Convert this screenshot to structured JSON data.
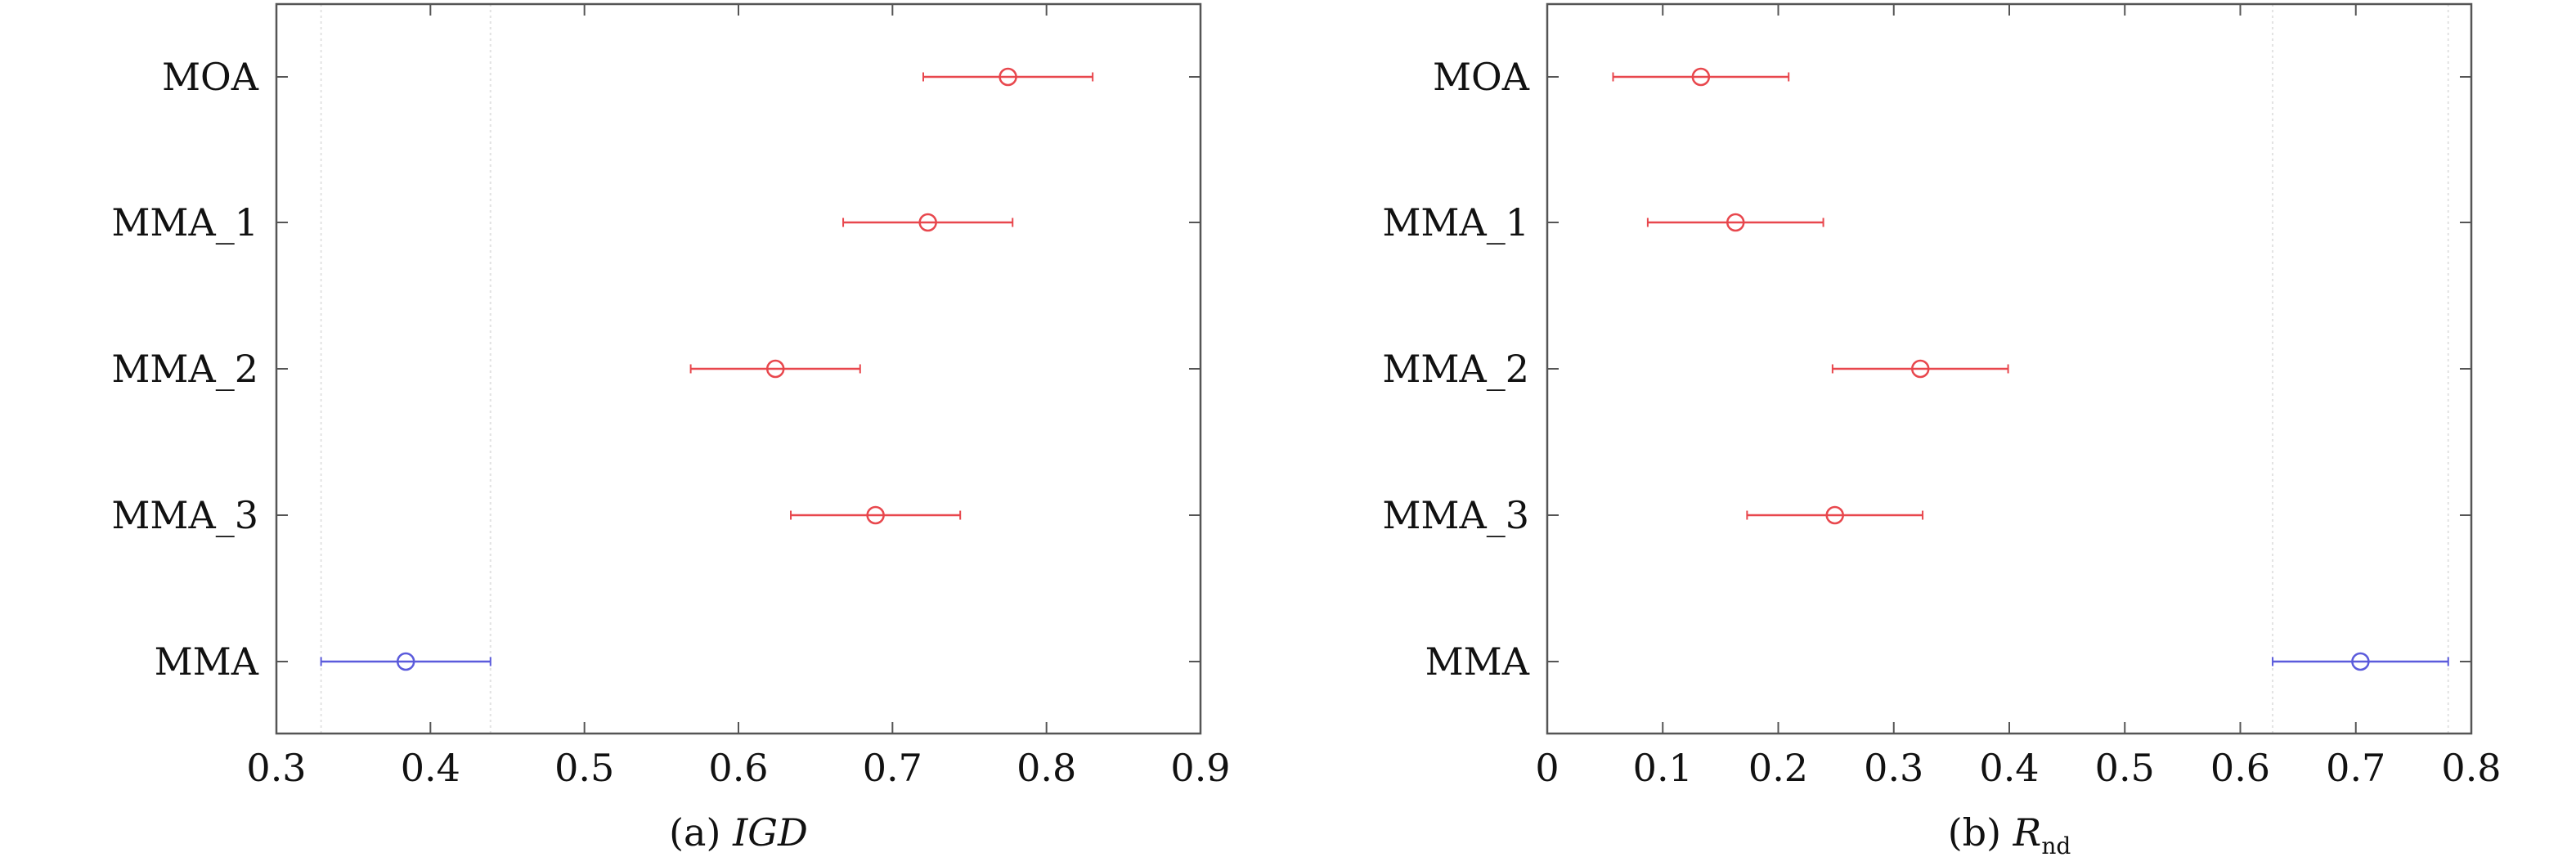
{
  "colors": {
    "treatment": "#e8474d",
    "control": "#5b5bdc",
    "axis": "#555555",
    "band": "#e2e2e2"
  },
  "chart_data": [
    {
      "type": "scatter",
      "subtype": "interval-plot",
      "caption_prefix": "(a) ",
      "caption_main": "IGD",
      "caption_sub": "",
      "caption_style": "italic",
      "categories": [
        "MOA",
        "MMA_1",
        "MMA_2",
        "MMA_3",
        "MMA"
      ],
      "series": [
        {
          "points": [
            {
              "category": "MOA",
              "value": 0.775,
              "lower": 0.72,
              "upper": 0.83,
              "group": "treatment"
            },
            {
              "category": "MMA_1",
              "value": 0.723,
              "lower": 0.668,
              "upper": 0.778,
              "group": "treatment"
            },
            {
              "category": "MMA_2",
              "value": 0.624,
              "lower": 0.569,
              "upper": 0.679,
              "group": "treatment"
            },
            {
              "category": "MMA_3",
              "value": 0.689,
              "lower": 0.634,
              "upper": 0.744,
              "group": "treatment"
            },
            {
              "category": "MMA",
              "value": 0.384,
              "lower": 0.329,
              "upper": 0.439,
              "group": "control"
            }
          ]
        }
      ],
      "xlim": [
        0.3,
        0.9
      ],
      "xticks": [
        0.3,
        0.4,
        0.5,
        0.6,
        0.7,
        0.8,
        0.9
      ],
      "xtick_labels": [
        "0.3",
        "0.4",
        "0.5",
        "0.6",
        "0.7",
        "0.8",
        "0.9"
      ],
      "reference_band": [
        0.329,
        0.439
      ],
      "grid": false
    },
    {
      "type": "scatter",
      "subtype": "interval-plot",
      "caption_prefix": "(b) ",
      "caption_main": "R",
      "caption_sub": "nd",
      "caption_style": "italic",
      "categories": [
        "MOA",
        "MMA_1",
        "MMA_2",
        "MMA_3",
        "MMA"
      ],
      "series": [
        {
          "points": [
            {
              "category": "MOA",
              "value": 0.133,
              "lower": 0.057,
              "upper": 0.209,
              "group": "treatment"
            },
            {
              "category": "MMA_1",
              "value": 0.163,
              "lower": 0.087,
              "upper": 0.239,
              "group": "treatment"
            },
            {
              "category": "MMA_2",
              "value": 0.323,
              "lower": 0.247,
              "upper": 0.399,
              "group": "treatment"
            },
            {
              "category": "MMA_3",
              "value": 0.249,
              "lower": 0.173,
              "upper": 0.325,
              "group": "treatment"
            },
            {
              "category": "MMA",
              "value": 0.704,
              "lower": 0.628,
              "upper": 0.78,
              "group": "control"
            }
          ]
        }
      ],
      "xlim": [
        0,
        0.8
      ],
      "xticks": [
        0,
        0.1,
        0.2,
        0.3,
        0.4,
        0.5,
        0.6,
        0.7,
        0.8
      ],
      "xtick_labels": [
        "0",
        "0.1",
        "0.2",
        "0.3",
        "0.4",
        "0.5",
        "0.6",
        "0.7",
        "0.8"
      ],
      "reference_band": [
        0.628,
        0.78
      ],
      "grid": false
    }
  ]
}
